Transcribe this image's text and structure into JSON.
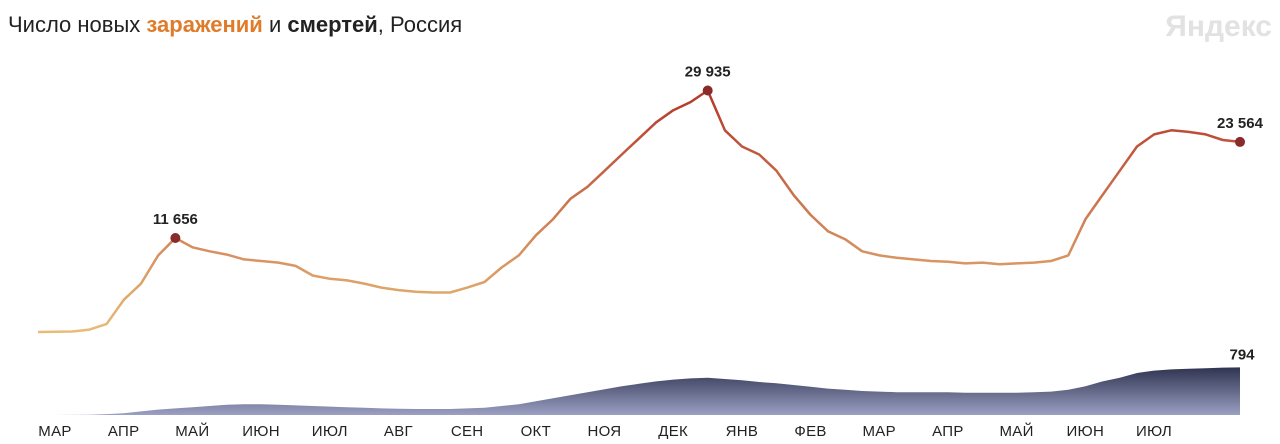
{
  "chart_data": {
    "type": "line",
    "title_parts": [
      "Число новых ",
      "заражений",
      " и ",
      "смертей",
      ", Россия"
    ],
    "logo": "Яндекс",
    "categories": [
      "МАР",
      null,
      null,
      null,
      "АПР",
      null,
      null,
      null,
      "МАЙ",
      null,
      null,
      null,
      "ИЮН",
      null,
      null,
      null,
      "ИЮЛ",
      null,
      null,
      null,
      "АВГ",
      null,
      null,
      null,
      "СЕН",
      null,
      null,
      null,
      "ОКТ",
      null,
      null,
      null,
      "НОЯ",
      null,
      null,
      null,
      "ДЕК",
      null,
      null,
      null,
      "ЯНВ",
      null,
      null,
      null,
      "ФЕВ",
      null,
      null,
      null,
      "МАР",
      null,
      null,
      null,
      "АПР",
      null,
      null,
      null,
      "МАЙ",
      null,
      null,
      null,
      "ИЮН",
      null,
      null,
      null,
      "ИЮЛ",
      null,
      null,
      null,
      null,
      null,
      null
    ],
    "series": [
      {
        "name": "заражений",
        "color": [
          "#e8bc78",
          "#b3362a"
        ],
        "values": [
          0,
          20,
          60,
          300,
          1000,
          4000,
          6000,
          9500,
          11656,
          10500,
          10000,
          9600,
          9000,
          8800,
          8600,
          8200,
          7000,
          6600,
          6400,
          6000,
          5500,
          5200,
          5000,
          4900,
          4900,
          5500,
          6200,
          8000,
          9500,
          12000,
          14000,
          16500,
          18000,
          20000,
          22000,
          24000,
          26000,
          27500,
          28500,
          29935,
          25000,
          23000,
          22000,
          20000,
          17000,
          14500,
          12500,
          11500,
          10000,
          9500,
          9200,
          9000,
          8800,
          8700,
          8500,
          8600,
          8400,
          8500,
          8600,
          8800,
          9500,
          14000,
          17000,
          20000,
          23000,
          24500,
          25000,
          24800,
          24500,
          23800,
          23564
        ],
        "value_labels": [
          null,
          null,
          null,
          null,
          null,
          null,
          null,
          null,
          "11 656",
          null,
          null,
          null,
          null,
          null,
          null,
          null,
          null,
          null,
          null,
          null,
          null,
          null,
          null,
          null,
          null,
          null,
          null,
          null,
          null,
          null,
          null,
          null,
          null,
          null,
          null,
          null,
          null,
          null,
          null,
          "29 935",
          null,
          null,
          null,
          null,
          null,
          null,
          null,
          null,
          null,
          null,
          null,
          null,
          null,
          null,
          null,
          null,
          null,
          null,
          null,
          null,
          null,
          null,
          null,
          null,
          null,
          null,
          null,
          null,
          null,
          null,
          "23 564"
        ]
      },
      {
        "name": "смертей",
        "color": [
          "#2e3350",
          "#9b9fc2"
        ],
        "axis": "y2",
        "values": [
          0,
          0,
          1,
          5,
          15,
          30,
          60,
          90,
          110,
          130,
          150,
          170,
          180,
          180,
          170,
          160,
          150,
          140,
          130,
          120,
          110,
          105,
          100,
          100,
          100,
          110,
          120,
          150,
          180,
          230,
          280,
          330,
          380,
          430,
          480,
          520,
          560,
          590,
          610,
          620,
          600,
          580,
          550,
          530,
          500,
          470,
          440,
          420,
          400,
          390,
          380,
          380,
          380,
          380,
          370,
          370,
          370,
          370,
          380,
          390,
          420,
          480,
          560,
          620,
          700,
          740,
          760,
          770,
          780,
          790,
          794
        ]
      }
    ],
    "ylim": [
      0,
      30000
    ],
    "y2lim": [
      0,
      800
    ]
  }
}
